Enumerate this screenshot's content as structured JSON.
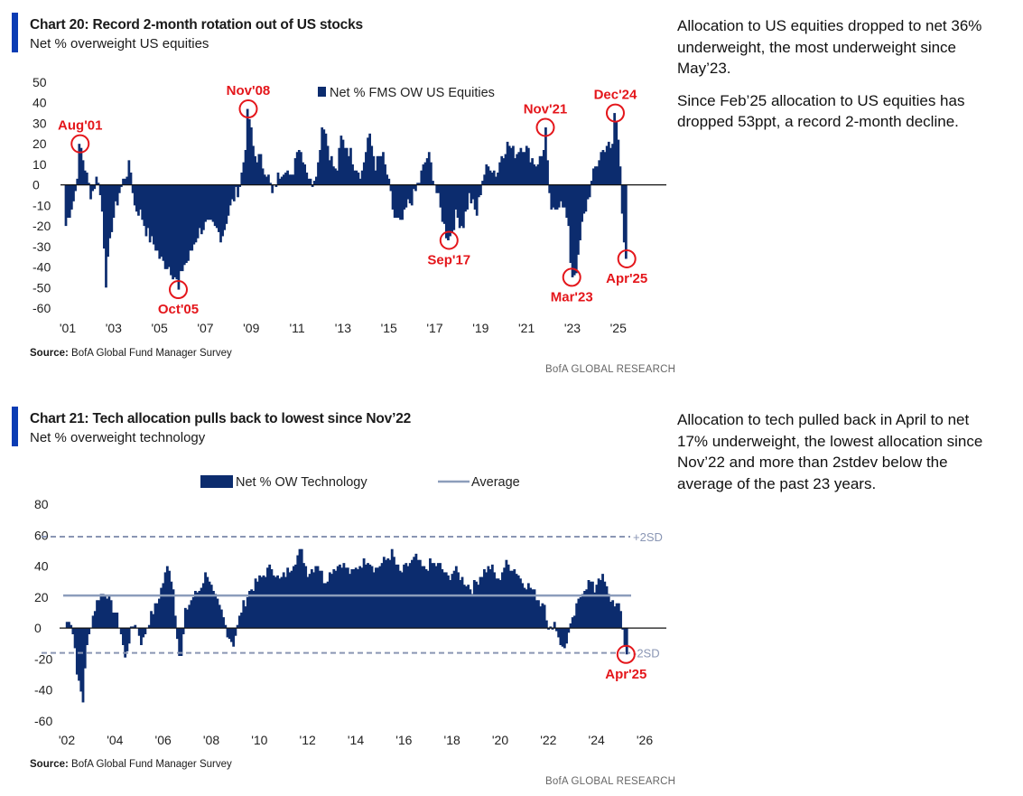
{
  "colors": {
    "bar": "#0c2c6e",
    "accent": "#0a3cb4",
    "annotation": "#e4161b",
    "average": "#8c9dbb",
    "sd": "#8a96b4"
  },
  "chart20": {
    "title": "Chart 20: Record 2-month rotation out of US stocks",
    "subtitle": "Net % overweight US equities",
    "source_label": "Source:",
    "source_text": "BofA Global Fund Manager Survey",
    "brand": "BofA GLOBAL RESEARCH",
    "commentary": [
      "Allocation to US equities dropped to net 36% underweight, the most underweight since May’23.",
      "Since Feb’25 allocation to US equities has dropped 53ppt, a record 2-month decline."
    ]
  },
  "chart21": {
    "title": "Chart 21: Tech allocation pulls back to lowest since Nov’22",
    "subtitle": "Net % overweight technology",
    "source_label": "Source:",
    "source_text": "BofA Global Fund Manager Survey",
    "brand": "BofA GLOBAL RESEARCH",
    "commentary": [
      "Allocation to tech pulled back in April to net 17% underweight, the lowest allocation since Nov’22 and more than 2stdev below the average of the past 23 years."
    ]
  },
  "chart_data": [
    {
      "type": "bar",
      "title": "Chart 20: Record 2-month rotation out of US stocks",
      "subtitle": "Net % overweight US equities",
      "xlabel": "",
      "ylabel": "",
      "x_range": [
        2001.0,
        2025.6
      ],
      "ylim": [
        -60,
        50
      ],
      "yticks": [
        50,
        40,
        30,
        20,
        10,
        0,
        -10,
        -20,
        -30,
        -40,
        -50,
        -60
      ],
      "xtick_labels": [
        "'01",
        "'03",
        "'05",
        "'07",
        "'09",
        "'11",
        "'13",
        "'15",
        "'17",
        "'19",
        "'21",
        "'23",
        "'25"
      ],
      "xtick_years": [
        2001,
        2003,
        2005,
        2007,
        2009,
        2011,
        2013,
        2015,
        2017,
        2019,
        2021,
        2023,
        2025
      ],
      "legend": {
        "position": "top-center",
        "entries": [
          {
            "label": "Net % FMS OW US Equities",
            "kind": "bar"
          }
        ]
      },
      "grid": false,
      "anchors": [
        [
          2001.0,
          -20
        ],
        [
          2001.4,
          -5
        ],
        [
          2001.62,
          20
        ],
        [
          2001.8,
          10
        ],
        [
          2002.1,
          -5
        ],
        [
          2002.4,
          5
        ],
        [
          2002.6,
          -15
        ],
        [
          2002.75,
          -47
        ],
        [
          2003.0,
          -20
        ],
        [
          2003.3,
          -5
        ],
        [
          2003.6,
          5
        ],
        [
          2003.8,
          10
        ],
        [
          2004.0,
          -10
        ],
        [
          2004.3,
          -15
        ],
        [
          2004.6,
          -25
        ],
        [
          2004.9,
          -30
        ],
        [
          2005.2,
          -38
        ],
        [
          2005.5,
          -40
        ],
        [
          2005.8,
          -45
        ],
        [
          2005.9,
          -51
        ],
        [
          2006.1,
          -40
        ],
        [
          2006.4,
          -35
        ],
        [
          2006.7,
          -25
        ],
        [
          2007.0,
          -20
        ],
        [
          2007.4,
          -20
        ],
        [
          2007.8,
          -25
        ],
        [
          2008.2,
          -10
        ],
        [
          2008.6,
          0
        ],
        [
          2008.8,
          15
        ],
        [
          2008.95,
          37
        ],
        [
          2009.2,
          15
        ],
        [
          2009.5,
          12
        ],
        [
          2009.8,
          5
        ],
        [
          2010.0,
          -5
        ],
        [
          2010.3,
          5
        ],
        [
          2010.6,
          10
        ],
        [
          2010.8,
          0
        ],
        [
          2011.1,
          20
        ],
        [
          2011.4,
          12
        ],
        [
          2011.7,
          0
        ],
        [
          2012.0,
          10
        ],
        [
          2012.2,
          33
        ],
        [
          2012.5,
          15
        ],
        [
          2012.8,
          5
        ],
        [
          2013.0,
          22
        ],
        [
          2013.3,
          18
        ],
        [
          2013.6,
          10
        ],
        [
          2013.9,
          5
        ],
        [
          2014.2,
          25
        ],
        [
          2014.5,
          10
        ],
        [
          2014.8,
          15
        ],
        [
          2015.0,
          5
        ],
        [
          2015.3,
          -15
        ],
        [
          2015.6,
          -20
        ],
        [
          2015.9,
          -10
        ],
        [
          2016.2,
          -5
        ],
        [
          2016.5,
          5
        ],
        [
          2016.8,
          15
        ],
        [
          2017.0,
          5
        ],
        [
          2017.3,
          -10
        ],
        [
          2017.6,
          -25
        ],
        [
          2017.7,
          -27
        ],
        [
          2018.0,
          -15
        ],
        [
          2018.3,
          -20
        ],
        [
          2018.6,
          -5
        ],
        [
          2018.9,
          -15
        ],
        [
          2019.2,
          5
        ],
        [
          2019.5,
          10
        ],
        [
          2019.8,
          5
        ],
        [
          2020.0,
          15
        ],
        [
          2020.3,
          20
        ],
        [
          2020.6,
          15
        ],
        [
          2020.9,
          20
        ],
        [
          2021.2,
          15
        ],
        [
          2021.5,
          10
        ],
        [
          2021.8,
          15
        ],
        [
          2021.9,
          28
        ],
        [
          2022.1,
          -10
        ],
        [
          2022.3,
          -15
        ],
        [
          2022.6,
          -5
        ],
        [
          2022.9,
          -20
        ],
        [
          2023.05,
          -45
        ],
        [
          2023.3,
          -40
        ],
        [
          2023.5,
          -20
        ],
        [
          2023.8,
          -5
        ],
        [
          2024.0,
          5
        ],
        [
          2024.3,
          15
        ],
        [
          2024.6,
          20
        ],
        [
          2024.8,
          15
        ],
        [
          2024.95,
          35
        ],
        [
          2025.15,
          17
        ],
        [
          2025.3,
          -25
        ],
        [
          2025.45,
          -36
        ]
      ],
      "annotations": [
        {
          "label": "Aug'01",
          "x": 2001.62,
          "y": 20,
          "label_side": "above"
        },
        {
          "label": "Oct'05",
          "x": 2005.9,
          "y": -51,
          "label_side": "below"
        },
        {
          "label": "Nov'08",
          "x": 2008.95,
          "y": 37,
          "label_side": "above"
        },
        {
          "label": "Sep'17",
          "x": 2017.7,
          "y": -27,
          "label_side": "below"
        },
        {
          "label": "Nov'21",
          "x": 2021.9,
          "y": 28,
          "label_side": "above"
        },
        {
          "label": "Mar'23",
          "x": 2023.05,
          "y": -45,
          "label_side": "below"
        },
        {
          "label": "Dec'24",
          "x": 2024.95,
          "y": 35,
          "label_side": "above"
        },
        {
          "label": "Apr'25",
          "x": 2025.45,
          "y": -36,
          "label_side": "below"
        }
      ]
    },
    {
      "type": "bar",
      "title": "Chart 21: Tech allocation pulls back to lowest since Nov’22",
      "subtitle": "Net % overweight technology",
      "xlabel": "",
      "ylabel": "",
      "x_range": [
        2002.0,
        2025.4
      ],
      "ylim": [
        -60,
        80
      ],
      "yticks": [
        80,
        60,
        40,
        20,
        0,
        -20,
        -40,
        -60
      ],
      "xtick_labels": [
        "'02",
        "'04",
        "'06",
        "'08",
        "'10",
        "'12",
        "'14",
        "'16",
        "'18",
        "'20",
        "'22",
        "'24",
        "'26"
      ],
      "xtick_years": [
        2002,
        2004,
        2006,
        2008,
        2010,
        2012,
        2014,
        2016,
        2018,
        2020,
        2022,
        2024,
        2026
      ],
      "legend": {
        "position": "top-center",
        "entries": [
          {
            "label": "Net % OW Technology",
            "kind": "bar"
          },
          {
            "label": "Average",
            "kind": "line"
          }
        ]
      },
      "grid": false,
      "average": 21,
      "plus2sd": {
        "label": "+2SD",
        "value": 59
      },
      "minus2sd": {
        "label": "-2SD",
        "value": -16
      },
      "anchors": [
        [
          2002.0,
          0
        ],
        [
          2002.2,
          8
        ],
        [
          2002.4,
          -10
        ],
        [
          2002.55,
          -35
        ],
        [
          2002.75,
          -47
        ],
        [
          2002.85,
          -20
        ],
        [
          2003.1,
          5
        ],
        [
          2003.4,
          20
        ],
        [
          2003.7,
          24
        ],
        [
          2003.9,
          15
        ],
        [
          2004.1,
          10
        ],
        [
          2004.3,
          0
        ],
        [
          2004.5,
          -20
        ],
        [
          2004.7,
          -5
        ],
        [
          2004.9,
          5
        ],
        [
          2005.2,
          -10
        ],
        [
          2005.5,
          5
        ],
        [
          2005.8,
          15
        ],
        [
          2006.0,
          25
        ],
        [
          2006.3,
          42
        ],
        [
          2006.5,
          25
        ],
        [
          2006.7,
          -10
        ],
        [
          2006.8,
          -25
        ],
        [
          2007.0,
          10
        ],
        [
          2007.3,
          20
        ],
        [
          2007.6,
          25
        ],
        [
          2007.9,
          37
        ],
        [
          2008.2,
          20
        ],
        [
          2008.5,
          10
        ],
        [
          2008.8,
          -5
        ],
        [
          2009.0,
          -10
        ],
        [
          2009.3,
          10
        ],
        [
          2009.7,
          25
        ],
        [
          2010.0,
          30
        ],
        [
          2010.3,
          35
        ],
        [
          2010.6,
          40
        ],
        [
          2010.9,
          30
        ],
        [
          2011.2,
          35
        ],
        [
          2011.6,
          45
        ],
        [
          2011.8,
          50
        ],
        [
          2012.1,
          35
        ],
        [
          2012.5,
          42
        ],
        [
          2012.8,
          30
        ],
        [
          2013.1,
          38
        ],
        [
          2013.5,
          42
        ],
        [
          2013.9,
          35
        ],
        [
          2014.2,
          40
        ],
        [
          2014.6,
          45
        ],
        [
          2014.9,
          38
        ],
        [
          2015.2,
          42
        ],
        [
          2015.6,
          48
        ],
        [
          2015.9,
          35
        ],
        [
          2016.2,
          40
        ],
        [
          2016.6,
          45
        ],
        [
          2016.9,
          37
        ],
        [
          2017.2,
          42
        ],
        [
          2017.6,
          40
        ],
        [
          2017.9,
          32
        ],
        [
          2018.2,
          38
        ],
        [
          2018.6,
          30
        ],
        [
          2018.9,
          25
        ],
        [
          2019.3,
          35
        ],
        [
          2019.7,
          40
        ],
        [
          2020.0,
          30
        ],
        [
          2020.3,
          42
        ],
        [
          2020.7,
          38
        ],
        [
          2021.0,
          30
        ],
        [
          2021.4,
          25
        ],
        [
          2021.8,
          15
        ],
        [
          2021.9,
          20
        ],
        [
          2022.1,
          -5
        ],
        [
          2022.3,
          5
        ],
        [
          2022.5,
          -5
        ],
        [
          2022.7,
          -15
        ],
        [
          2022.9,
          -5
        ],
        [
          2023.2,
          10
        ],
        [
          2023.5,
          25
        ],
        [
          2023.8,
          30
        ],
        [
          2024.0,
          25
        ],
        [
          2024.2,
          35
        ],
        [
          2024.4,
          30
        ],
        [
          2024.6,
          20
        ],
        [
          2024.9,
          15
        ],
        [
          2025.1,
          10
        ],
        [
          2025.2,
          -5
        ],
        [
          2025.3,
          -17
        ]
      ],
      "annotations": [
        {
          "label": "Apr'25",
          "x": 2025.3,
          "y": -17,
          "label_side": "below"
        }
      ]
    }
  ]
}
